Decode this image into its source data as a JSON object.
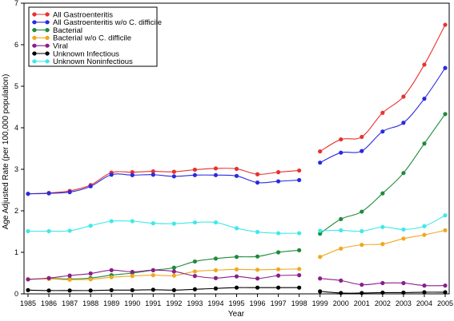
{
  "chart_data": {
    "type": "line",
    "xlabel": "Year",
    "ylabel": "Age Adjusted Rate (per 100,000 population)",
    "xlim": [
      1985,
      2005
    ],
    "ylim": [
      0,
      7
    ],
    "x_ticks": [
      1985,
      1986,
      1987,
      1988,
      1989,
      1990,
      1991,
      1992,
      1993,
      1994,
      1995,
      1996,
      1997,
      1998,
      1999,
      2000,
      2001,
      2002,
      2003,
      2004,
      2005
    ],
    "y_ticks": [
      0,
      1,
      2,
      3,
      4,
      5,
      6,
      7
    ],
    "gap_between": [
      1998,
      1999
    ],
    "grid": false,
    "legend_position": "top-left",
    "series": [
      {
        "name": "All Gastroenteritis",
        "color": "#e8312f",
        "segments": [
          {
            "x": [
              1985,
              1986,
              1987,
              1988,
              1989,
              1990,
              1991,
              1992,
              1993,
              1994,
              1995,
              1996,
              1997,
              1998
            ],
            "y": [
              2.41,
              2.43,
              2.48,
              2.62,
              2.92,
              2.93,
              2.95,
              2.94,
              2.99,
              3.02,
              3.01,
              2.88,
              2.93,
              2.97
            ]
          },
          {
            "x": [
              1999,
              2000,
              2001,
              2002,
              2003,
              2004,
              2005
            ],
            "y": [
              3.43,
              3.72,
              3.78,
              4.36,
              4.75,
              5.52,
              6.48
            ]
          }
        ]
      },
      {
        "name": "All Gastroenteritis w/o C. difficile",
        "color": "#2a2ae0",
        "segments": [
          {
            "x": [
              1985,
              1986,
              1987,
              1988,
              1989,
              1990,
              1991,
              1992,
              1993,
              1994,
              1995,
              1996,
              1997,
              1998
            ],
            "y": [
              2.41,
              2.42,
              2.45,
              2.59,
              2.87,
              2.86,
              2.87,
              2.83,
              2.86,
              2.86,
              2.84,
              2.68,
              2.71,
              2.74
            ]
          },
          {
            "x": [
              1999,
              2000,
              2001,
              2002,
              2003,
              2004,
              2005
            ],
            "y": [
              3.16,
              3.4,
              3.44,
              3.91,
              4.12,
              4.7,
              5.44
            ]
          }
        ]
      },
      {
        "name": "Bacterial",
        "color": "#1f8a3a",
        "segments": [
          {
            "x": [
              1985,
              1986,
              1987,
              1988,
              1989,
              1990,
              1991,
              1992,
              1993,
              1994,
              1995,
              1996,
              1997,
              1998
            ],
            "y": [
              0.35,
              0.37,
              0.36,
              0.38,
              0.45,
              0.5,
              0.57,
              0.63,
              0.78,
              0.85,
              0.89,
              0.9,
              1.0,
              1.05
            ]
          },
          {
            "x": [
              1999,
              2000,
              2001,
              2002,
              2003,
              2004,
              2005
            ],
            "y": [
              1.45,
              1.8,
              1.98,
              2.42,
              2.91,
              3.62,
              4.33
            ]
          }
        ]
      },
      {
        "name": "Bacterial w/o C. difficile",
        "color": "#f0a820",
        "segments": [
          {
            "x": [
              1985,
              1986,
              1987,
              1988,
              1989,
              1990,
              1991,
              1992,
              1993,
              1994,
              1995,
              1996,
              1997,
              1998
            ],
            "y": [
              0.35,
              0.36,
              0.34,
              0.35,
              0.4,
              0.43,
              0.45,
              0.44,
              0.54,
              0.57,
              0.59,
              0.58,
              0.59,
              0.6
            ]
          },
          {
            "x": [
              1999,
              2000,
              2001,
              2002,
              2003,
              2004,
              2005
            ],
            "y": [
              0.89,
              1.09,
              1.18,
              1.2,
              1.33,
              1.42,
              1.53
            ]
          }
        ]
      },
      {
        "name": "Viral",
        "color": "#8a1e8a",
        "segments": [
          {
            "x": [
              1985,
              1986,
              1987,
              1988,
              1989,
              1990,
              1991,
              1992,
              1993,
              1994,
              1995,
              1996,
              1997,
              1998
            ],
            "y": [
              0.35,
              0.38,
              0.44,
              0.49,
              0.57,
              0.53,
              0.57,
              0.54,
              0.43,
              0.38,
              0.42,
              0.37,
              0.44,
              0.45
            ]
          },
          {
            "x": [
              1999,
              2000,
              2001,
              2002,
              2003,
              2004,
              2005
            ],
            "y": [
              0.37,
              0.32,
              0.22,
              0.26,
              0.26,
              0.2,
              0.2
            ]
          }
        ]
      },
      {
        "name": "Unknown Infectious",
        "color": "#000000",
        "segments": [
          {
            "x": [
              1985,
              1986,
              1987,
              1988,
              1989,
              1990,
              1991,
              1992,
              1993,
              1994,
              1995,
              1996,
              1997,
              1998
            ],
            "y": [
              0.09,
              0.08,
              0.08,
              0.08,
              0.09,
              0.09,
              0.1,
              0.09,
              0.11,
              0.13,
              0.15,
              0.15,
              0.15,
              0.15
            ]
          },
          {
            "x": [
              1999,
              2000,
              2001,
              2002,
              2003,
              2004,
              2005
            ],
            "y": [
              0.06,
              0.02,
              0.02,
              0.03,
              0.03,
              0.04,
              0.04
            ]
          }
        ]
      },
      {
        "name": "Unknown Noninfectious",
        "color": "#40e8e8",
        "segments": [
          {
            "x": [
              1985,
              1986,
              1987,
              1988,
              1989,
              1990,
              1991,
              1992,
              1993,
              1994,
              1995,
              1996,
              1997,
              1998
            ],
            "y": [
              1.51,
              1.51,
              1.52,
              1.64,
              1.75,
              1.75,
              1.7,
              1.69,
              1.72,
              1.72,
              1.58,
              1.49,
              1.46,
              1.46
            ]
          },
          {
            "x": [
              1999,
              2000,
              2001,
              2002,
              2003,
              2004,
              2005
            ],
            "y": [
              1.52,
              1.53,
              1.51,
              1.61,
              1.55,
              1.63,
              1.89
            ]
          }
        ]
      }
    ]
  }
}
